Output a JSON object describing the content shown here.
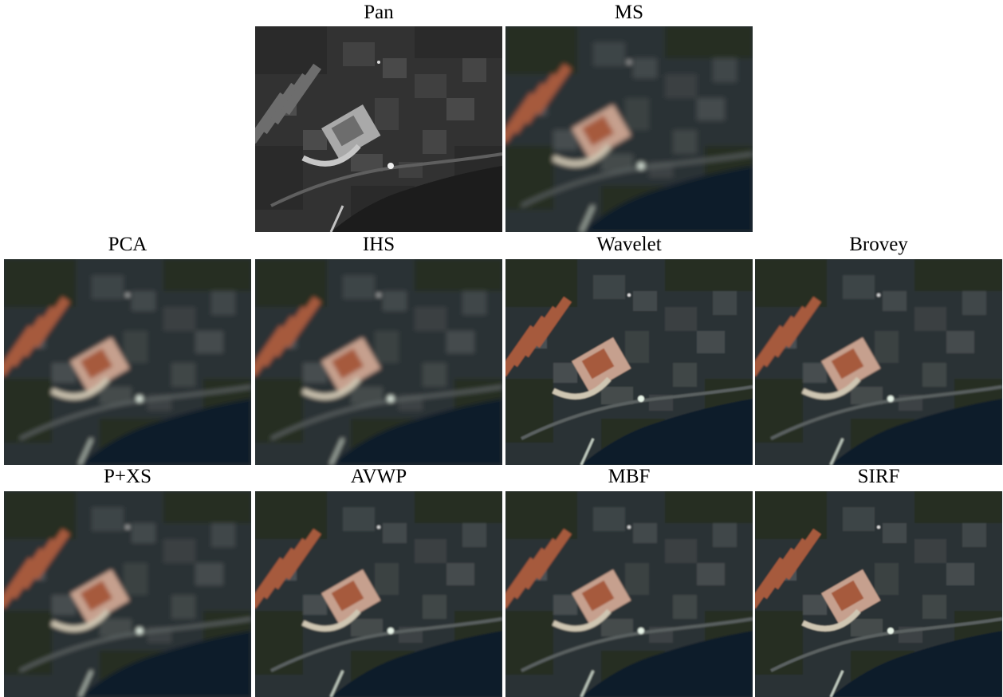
{
  "panels": [
    {
      "id": "pan",
      "label": "Pan",
      "mode": "gray",
      "blur": 0.3
    },
    {
      "id": "ms",
      "label": "MS",
      "mode": "color",
      "blur": 3.2
    },
    {
      "id": "pca",
      "label": "PCA",
      "mode": "color",
      "blur": 2.8
    },
    {
      "id": "ihs",
      "label": "IHS",
      "mode": "color",
      "blur": 3.0
    },
    {
      "id": "wavelet",
      "label": "Wavelet",
      "mode": "color",
      "blur": 0.9
    },
    {
      "id": "brovey",
      "label": "Brovey",
      "mode": "color",
      "blur": 1.0
    },
    {
      "id": "pxs",
      "label": "P+XS",
      "mode": "color",
      "blur": 2.6
    },
    {
      "id": "avwp",
      "label": "AVWP",
      "mode": "color",
      "blur": 1.0
    },
    {
      "id": "mbf",
      "label": "MBF",
      "mode": "color",
      "blur": 1.1
    },
    {
      "id": "sirf",
      "label": "SIRF",
      "mode": "color",
      "blur": 0.8
    }
  ],
  "colors": {
    "water": "#0f1c2c",
    "land": "#2c3334",
    "vegetation": "#262e24",
    "roof": "#a65a3c",
    "pan_dark": "#222222"
  }
}
